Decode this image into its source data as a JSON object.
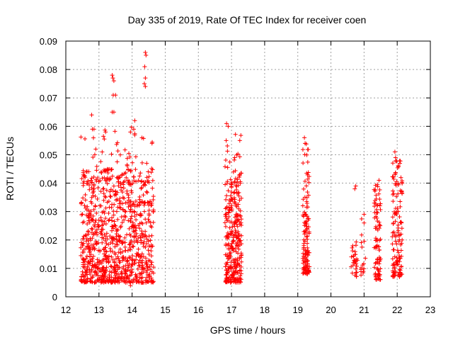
{
  "chart_data": {
    "type": "scatter",
    "title": "Day 335 of 2019, Rate Of TEC Index for receiver coen",
    "xlabel": "GPS time / hours",
    "ylabel": "ROTI / TECUs",
    "xlim": [
      12,
      23
    ],
    "ylim": [
      0,
      0.09
    ],
    "xticks": [
      "12",
      "13",
      "14",
      "15",
      "16",
      "17",
      "18",
      "19",
      "20",
      "21",
      "22",
      "23"
    ],
    "yticks": [
      "0",
      "0.01",
      "0.02",
      "0.03",
      "0.04",
      "0.05",
      "0.06",
      "0.07",
      "0.08",
      "0.09"
    ],
    "grid": true,
    "marker": "plus",
    "color": "#ff0000",
    "clusters": [
      {
        "x_range": [
          12.45,
          14.65
        ],
        "y_range": [
          0.005,
          0.045
        ],
        "count": 900
      },
      {
        "x_range": [
          12.45,
          14.65
        ],
        "y_range": [
          0.04,
          0.06
        ],
        "count": 60
      },
      {
        "x_range": [
          16.8,
          17.3
        ],
        "y_range": [
          0.005,
          0.04
        ],
        "count": 280
      },
      {
        "x_range": [
          16.8,
          17.3
        ],
        "y_range": [
          0.04,
          0.06
        ],
        "count": 30
      },
      {
        "x_range": [
          19.15,
          19.35
        ],
        "y_range": [
          0.008,
          0.035
        ],
        "count": 110
      },
      {
        "x_range": [
          19.15,
          19.35
        ],
        "y_range": [
          0.035,
          0.056
        ],
        "count": 20
      },
      {
        "x_range": [
          20.6,
          20.8
        ],
        "y_range": [
          0.007,
          0.02
        ],
        "count": 30
      },
      {
        "x_range": [
          20.9,
          21.05
        ],
        "y_range": [
          0.007,
          0.03
        ],
        "count": 15
      },
      {
        "x_range": [
          21.3,
          21.5
        ],
        "y_range": [
          0.006,
          0.04
        ],
        "count": 90
      },
      {
        "x_range": [
          21.85,
          22.15
        ],
        "y_range": [
          0.007,
          0.048
        ],
        "count": 130
      }
    ],
    "points": [
      {
        "x": 12.78,
        "y": 0.064
      },
      {
        "x": 13.4,
        "y": 0.078
      },
      {
        "x": 13.42,
        "y": 0.077
      },
      {
        "x": 13.45,
        "y": 0.076
      },
      {
        "x": 13.43,
        "y": 0.071
      },
      {
        "x": 13.5,
        "y": 0.071
      },
      {
        "x": 13.4,
        "y": 0.065
      },
      {
        "x": 13.45,
        "y": 0.065
      },
      {
        "x": 14.08,
        "y": 0.062
      },
      {
        "x": 14.4,
        "y": 0.086
      },
      {
        "x": 14.42,
        "y": 0.085
      },
      {
        "x": 14.38,
        "y": 0.081
      },
      {
        "x": 14.4,
        "y": 0.077
      },
      {
        "x": 14.37,
        "y": 0.075
      },
      {
        "x": 14.4,
        "y": 0.074
      },
      {
        "x": 14.6,
        "y": 0.054
      },
      {
        "x": 12.85,
        "y": 0.059
      },
      {
        "x": 12.8,
        "y": 0.059
      },
      {
        "x": 13.2,
        "y": 0.058
      },
      {
        "x": 14.05,
        "y": 0.059
      },
      {
        "x": 13.95,
        "y": 0.058
      },
      {
        "x": 16.85,
        "y": 0.061
      },
      {
        "x": 16.9,
        "y": 0.06
      },
      {
        "x": 17.25,
        "y": 0.055
      },
      {
        "x": 19.2,
        "y": 0.056
      },
      {
        "x": 19.22,
        "y": 0.054
      },
      {
        "x": 21.93,
        "y": 0.051
      },
      {
        "x": 21.95,
        "y": 0.049
      },
      {
        "x": 22.08,
        "y": 0.047
      },
      {
        "x": 20.75,
        "y": 0.039
      },
      {
        "x": 20.72,
        "y": 0.038
      },
      {
        "x": 21.0,
        "y": 0.029
      },
      {
        "x": 21.0,
        "y": 0.026
      },
      {
        "x": 21.45,
        "y": 0.041
      },
      {
        "x": 14.3,
        "y": 0.005
      },
      {
        "x": 13.95,
        "y": 0.004
      }
    ]
  }
}
